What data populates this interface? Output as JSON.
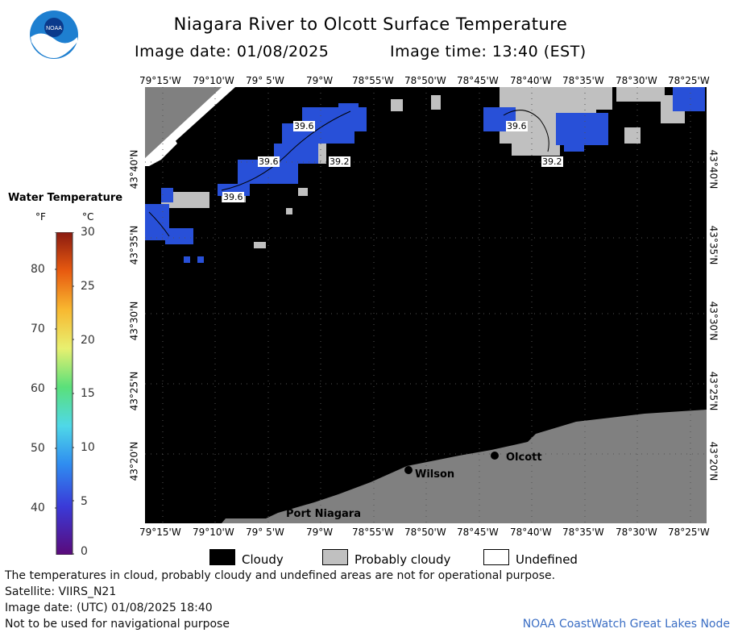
{
  "header": {
    "title": "Niagara River to Olcott Surface Temperature",
    "image_date": "Image date: 01/08/2025",
    "image_time": "Image time: 13:40 (EST)"
  },
  "logo": {
    "text": "NOAA"
  },
  "map": {
    "lon_ticks": [
      "79°15'W",
      "79°10'W",
      "79° 5'W",
      "79°W",
      "78°55'W",
      "78°50'W",
      "78°45'W",
      "78°40'W",
      "78°35'W",
      "78°30'W",
      "78°25'W"
    ],
    "lat_ticks": [
      "43°40'N",
      "43°35'N",
      "43°30'N",
      "43°25'N",
      "43°20'N"
    ],
    "places": {
      "wilson": "Wilson",
      "olcott": "Olcott",
      "port_niagara": "Port Niagara"
    },
    "contour_labels": [
      "39.6",
      "39.6",
      "39.2",
      "39.6",
      "39.6",
      "39.2"
    ],
    "colors": {
      "cloudy": "#000000",
      "probably_cloudy": "#c0c0c0",
      "land": "#808080",
      "water_cold": "#2850d8",
      "undefined": "#ffffff"
    }
  },
  "legend": {
    "title": "Water Temperature",
    "unit_f": "°F",
    "unit_c": "°C",
    "f_labels": [
      "80",
      "70",
      "60",
      "50",
      "40"
    ],
    "c_labels": [
      "30",
      "25",
      "20",
      "15",
      "10",
      "5",
      "0"
    ]
  },
  "key": {
    "cloudy": "Cloudy",
    "probably_cloudy": "Probably cloudy",
    "undefined": "Undefined"
  },
  "footer": {
    "disclaimer": "The temperatures in cloud, probably cloudy and undefined areas are not for operational purpose.",
    "satellite": "Satellite: VIIRS_N21",
    "utc_date": "Image date: (UTC) 01/08/2025  18:40",
    "nav": "Not to be used for navigational purpose",
    "credit": "NOAA CoastWatch Great Lakes Node"
  }
}
